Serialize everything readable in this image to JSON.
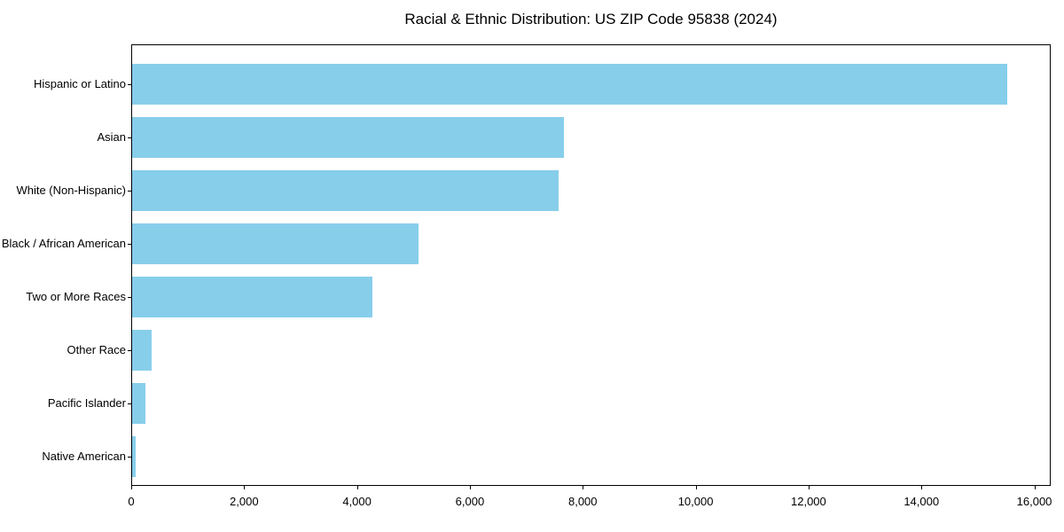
{
  "chart_data": {
    "type": "bar",
    "orientation": "horizontal",
    "title": "Racial & Ethnic Distribution: US ZIP Code 95838 (2024)",
    "categories": [
      "Hispanic or Latino",
      "Asian",
      "White (Non-Hispanic)",
      "Black / African American",
      "Two or More Races",
      "Other Race",
      "Pacific Islander",
      "Native American"
    ],
    "values": [
      15500,
      7650,
      7550,
      5070,
      4250,
      340,
      230,
      60
    ],
    "xlabel": "",
    "ylabel": "",
    "xlim": [
      0,
      16290
    ],
    "x_ticks": [
      0,
      2000,
      4000,
      6000,
      8000,
      10000,
      12000,
      14000,
      16000
    ],
    "x_tick_labels": [
      "0",
      "2,000",
      "4,000",
      "6,000",
      "8,000",
      "10,000",
      "12,000",
      "14,000",
      "16,000"
    ],
    "bar_color": "#87CEEB",
    "axis_color": "#000000",
    "text_color": "#000000",
    "background_color": "#ffffff",
    "grid": false,
    "legend": "none"
  }
}
